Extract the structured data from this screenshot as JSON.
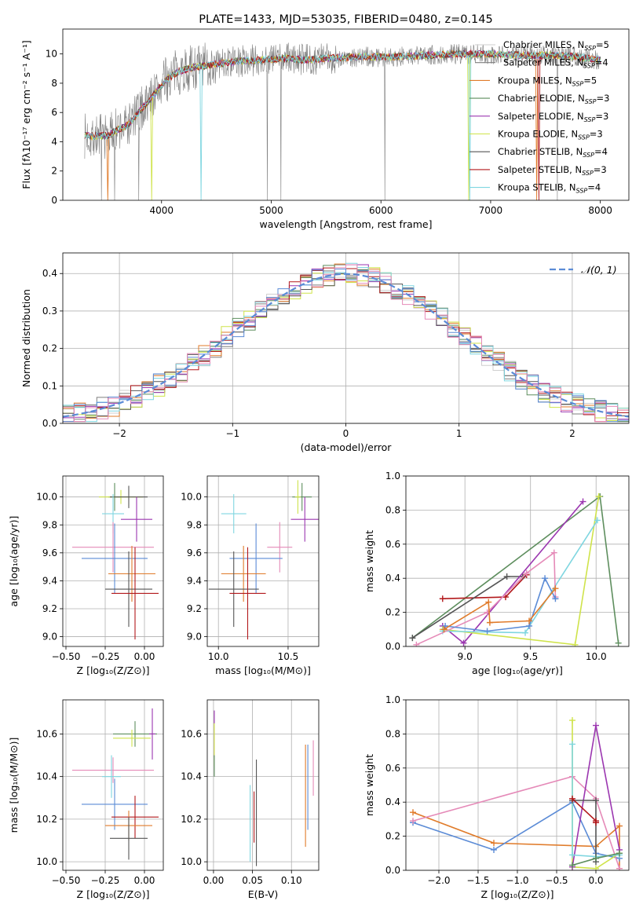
{
  "colors": {
    "chabrier_miles": "#cfcfcf",
    "salpeter_miles": "#7f7f7f",
    "kroupa_miles": "#e07b2a",
    "chabrier_elodie": "#5e8e5e",
    "salpeter_elodie": "#9b36b0",
    "kroupa_elodie": "#cfe34a",
    "chabrier_stelib": "#555555",
    "salpeter_stelib": "#b2181b",
    "kroupa_stelib": "#7fd6e0",
    "blue": "#5b8bd6",
    "pink": "#e58ab8"
  },
  "chart_data": [
    {
      "id": "spectrum",
      "type": "line",
      "title": "PLATE=1433, MJD=53035, FIBERID=0480, z=0.145",
      "xlabel": "wavelength [Angstrom, rest frame]",
      "ylabel": "Flux [fλ10⁻¹⁷ erg cm⁻² s⁻¹ A⁻¹]",
      "xlim": [
        3100,
        8260
      ],
      "ylim": [
        0,
        11.7
      ],
      "xticks": [
        "4000",
        "5000",
        "6000",
        "7000",
        "8000"
      ],
      "xtick_values": [
        4000,
        5000,
        6000,
        7000,
        8000
      ],
      "yticks": [
        "0",
        "2",
        "4",
        "6",
        "8",
        "10"
      ],
      "ytick_values": [
        0,
        2,
        4,
        6,
        8,
        10
      ],
      "continuum": {
        "x": [
          3300,
          3500,
          3700,
          3850,
          3950,
          4050,
          4150,
          4300,
          4500,
          4700,
          4900,
          5100,
          5300,
          5500,
          5800,
          6100,
          6400,
          6700,
          7000,
          7300,
          7600,
          7800,
          8000
        ],
        "y": [
          4.4,
          4.4,
          5.2,
          6.5,
          7.4,
          8.3,
          8.8,
          9.1,
          9.3,
          9.5,
          9.6,
          9.7,
          9.6,
          9.7,
          9.8,
          9.8,
          9.9,
          10.0,
          10.0,
          9.9,
          9.9,
          9.8,
          9.6
        ]
      },
      "legend": [
        {
          "label": "Chabrier MILES, N",
          "sub": "SSP",
          "eq": "=5"
        },
        {
          "label": "Salpeter MILES, N",
          "sub": "SSP",
          "eq": "=4"
        },
        {
          "label": "Kroupa MILES, N",
          "sub": "SSP",
          "eq": "=5"
        },
        {
          "label": "Chabrier ELODIE, N",
          "sub": "SSP",
          "eq": "=3"
        },
        {
          "label": "Salpeter ELODIE, N",
          "sub": "SSP",
          "eq": "=3"
        },
        {
          "label": "Kroupa ELODIE, N",
          "sub": "SSP",
          "eq": "=3"
        },
        {
          "label": "Chabrier STELIB, N",
          "sub": "SSP",
          "eq": "=4"
        },
        {
          "label": "Salpeter STELIB, N",
          "sub": "SSP",
          "eq": "=3"
        },
        {
          "label": "Kroupa STELIB, N",
          "sub": "SSP",
          "eq": "=4"
        }
      ],
      "legend_placement": "right"
    },
    {
      "id": "residual_histogram",
      "type": "histogram",
      "xlabel": "(data-model)/error",
      "ylabel": "Normed distribution",
      "xlim": [
        -2.5,
        2.5
      ],
      "ylim": [
        0,
        0.455
      ],
      "xticks": [
        "−2",
        "−1",
        "0",
        "1",
        "2"
      ],
      "xtick_values": [
        -2,
        -1,
        0,
        1,
        2
      ],
      "yticks": [
        "0.0",
        "0.1",
        "0.2",
        "0.3",
        "0.4"
      ],
      "ytick_values": [
        0,
        0.1,
        0.2,
        0.3,
        0.4
      ],
      "bin_width": 0.1,
      "legend": "𝒩(0, 1)",
      "legend_placement": "top-right",
      "grid": true
    },
    {
      "id": "age_vs_z",
      "type": "errorbar",
      "xlabel": "Z [log₁₀(Z/Z⊙)]",
      "ylabel": "age  [log₁₀(age/yr)]",
      "xlim": [
        -0.52,
        0.12
      ],
      "ylim": [
        8.93,
        10.15
      ],
      "xticks": [
        "−0.50",
        "−0.25",
        "0.00"
      ],
      "xtick_values": [
        -0.5,
        -0.25,
        0.0
      ],
      "yticks": [
        "9.0",
        "9.2",
        "9.4",
        "9.6",
        "9.8",
        "10.0"
      ],
      "ytick_values": [
        9.0,
        9.2,
        9.4,
        9.6,
        9.8,
        10.0
      ],
      "points": [
        {
          "x": -0.19,
          "y": 10.0,
          "xerr": 0.04,
          "yerr": 0.1,
          "c": "chabrier_elodie"
        },
        {
          "x": -0.15,
          "y": 10.0,
          "xerr": 0.14,
          "yerr": 0.05,
          "c": "kroupa_elodie"
        },
        {
          "x": -0.1,
          "y": 10.0,
          "xerr": 0.12,
          "yerr": 0.08,
          "c": "chabrier_stelib"
        },
        {
          "x": -0.2,
          "y": 9.88,
          "xerr": 0.07,
          "yerr": 0.14,
          "c": "kroupa_stelib"
        },
        {
          "x": -0.05,
          "y": 9.84,
          "xerr": 0.1,
          "yerr": 0.16,
          "c": "salpeter_elodie"
        },
        {
          "x": -0.2,
          "y": 9.64,
          "xerr": 0.26,
          "yerr": 0.18,
          "c": "pink"
        },
        {
          "x": -0.19,
          "y": 9.56,
          "xerr": 0.21,
          "yerr": 0.25,
          "c": "blue"
        },
        {
          "x": -0.08,
          "y": 9.45,
          "xerr": 0.15,
          "yerr": 0.2,
          "c": "kroupa_miles"
        },
        {
          "x": -0.1,
          "y": 9.34,
          "xerr": 0.15,
          "yerr": 0.27,
          "c": "chabrier_stelib"
        },
        {
          "x": -0.06,
          "y": 9.31,
          "xerr": 0.15,
          "yerr": 0.33,
          "c": "salpeter_stelib"
        }
      ],
      "grid": true
    },
    {
      "id": "age_vs_mass",
      "type": "errorbar",
      "xlabel": "mass [log₁₀(M/M⊙)]",
      "ylabel": "",
      "xlim": [
        9.92,
        10.72
      ],
      "ylim": [
        8.93,
        10.15
      ],
      "xticks": [
        "10.0",
        "10.5"
      ],
      "xtick_values": [
        10.0,
        10.5
      ],
      "yticks": [
        "9.0",
        "9.2",
        "9.4",
        "9.6",
        "9.8",
        "10.0"
      ],
      "ytick_values": [
        9.0,
        9.2,
        9.4,
        9.6,
        9.8,
        10.0
      ],
      "points": [
        {
          "x": 10.6,
          "y": 10.0,
          "xerr": 0.07,
          "yerr": 0.1,
          "c": "chabrier_elodie"
        },
        {
          "x": 10.57,
          "y": 10.0,
          "xerr": 0.02,
          "yerr": 0.12,
          "c": "kroupa_elodie"
        },
        {
          "x": 10.11,
          "y": 9.88,
          "xerr": 0.09,
          "yerr": 0.14,
          "c": "kroupa_stelib"
        },
        {
          "x": 10.62,
          "y": 9.84,
          "xerr": 0.1,
          "yerr": 0.16,
          "c": "salpeter_elodie"
        },
        {
          "x": 10.44,
          "y": 9.64,
          "xerr": 0.09,
          "yerr": 0.18,
          "c": "pink"
        },
        {
          "x": 10.27,
          "y": 9.56,
          "xerr": 0.19,
          "yerr": 0.25,
          "c": "blue"
        },
        {
          "x": 10.18,
          "y": 9.45,
          "xerr": 0.16,
          "yerr": 0.2,
          "c": "kroupa_miles"
        },
        {
          "x": 10.11,
          "y": 9.34,
          "xerr": 0.18,
          "yerr": 0.27,
          "c": "chabrier_stelib"
        },
        {
          "x": 10.21,
          "y": 9.31,
          "xerr": 0.13,
          "yerr": 0.33,
          "c": "salpeter_stelib"
        }
      ],
      "grid": true
    },
    {
      "id": "weight_vs_age",
      "type": "line",
      "xlabel": "age  [log₁₀(age/yr)]",
      "ylabel": "mass weight",
      "xlim": [
        8.55,
        10.25
      ],
      "ylim": [
        0.0,
        1.0
      ],
      "xticks": [
        "9.0",
        "9.5",
        "10.0"
      ],
      "xtick_values": [
        9.0,
        9.5,
        10.0
      ],
      "yticks": [
        "0.0",
        "0.2",
        "0.4",
        "0.6",
        "0.8",
        "1.0"
      ],
      "ytick_values": [
        0,
        0.2,
        0.4,
        0.6,
        0.8,
        1.0
      ],
      "series": [
        {
          "c": "chabrier_elodie",
          "x": [
            8.6,
            10.03,
            10.17
          ],
          "y": [
            0.05,
            0.88,
            0.02
          ]
        },
        {
          "c": "salpeter_stelib",
          "x": [
            8.83,
            9.31,
            9.47
          ],
          "y": [
            0.28,
            0.29,
            0.42
          ]
        },
        {
          "c": "chabrier_stelib",
          "x": [
            8.6,
            9.32,
            9.44
          ],
          "y": [
            0.05,
            0.41,
            0.41
          ]
        },
        {
          "c": "salpeter_elodie",
          "x": [
            8.83,
            8.99,
            9.9
          ],
          "y": [
            0.12,
            0.02,
            0.85
          ]
        },
        {
          "c": "kroupa_elodie",
          "x": [
            8.83,
            9.84,
            10.02
          ],
          "y": [
            0.1,
            0.01,
            0.88
          ]
        },
        {
          "c": "kroupa_stelib",
          "x": [
            8.83,
            9.46,
            10.01
          ],
          "y": [
            0.09,
            0.08,
            0.74
          ]
        },
        {
          "c": "pink",
          "x": [
            8.63,
            9.17,
            9.47,
            9.68,
            9.69
          ],
          "y": [
            0.01,
            0.2,
            0.43,
            0.55,
            0.29
          ]
        },
        {
          "c": "blue",
          "x": [
            8.85,
            9.17,
            9.49,
            9.61,
            9.69
          ],
          "y": [
            0.12,
            0.09,
            0.12,
            0.4,
            0.28
          ]
        },
        {
          "c": "kroupa_miles",
          "x": [
            8.84,
            9.18,
            9.19,
            9.49,
            9.69
          ],
          "y": [
            0.1,
            0.26,
            0.14,
            0.15,
            0.34
          ]
        }
      ],
      "grid": true
    },
    {
      "id": "mass_vs_z",
      "type": "errorbar",
      "xlabel": "Z [log₁₀(Z/Z⊙)]",
      "ylabel": "mass [log₁₀(M/M⊙)]",
      "xlim": [
        -0.52,
        0.12
      ],
      "ylim": [
        9.96,
        10.76
      ],
      "xticks": [
        "−0.50",
        "−0.25",
        "0.00"
      ],
      "xtick_values": [
        -0.5,
        -0.25,
        0.0
      ],
      "yticks": [
        "10.0",
        "10.2",
        "10.4",
        "10.6"
      ],
      "ytick_values": [
        10.0,
        10.2,
        10.4,
        10.6
      ],
      "points": [
        {
          "x": -0.06,
          "y": 10.6,
          "xerr": 0.14,
          "yerr": 0.06,
          "c": "chabrier_elodie"
        },
        {
          "x": 0.05,
          "y": 10.6,
          "xerr": 0.02,
          "yerr": 0.12,
          "c": "salpeter_elodie"
        },
        {
          "x": -0.08,
          "y": 10.58,
          "xerr": 0.12,
          "yerr": 0.04,
          "c": "kroupa_elodie"
        },
        {
          "x": -0.2,
          "y": 10.43,
          "xerr": 0.26,
          "yerr": 0.06,
          "c": "pink"
        },
        {
          "x": -0.21,
          "y": 10.4,
          "xerr": 0.06,
          "yerr": 0.1,
          "c": "kroupa_stelib"
        },
        {
          "x": -0.19,
          "y": 10.27,
          "xerr": 0.21,
          "yerr": 0.12,
          "c": "blue"
        },
        {
          "x": -0.06,
          "y": 10.21,
          "xerr": 0.15,
          "yerr": 0.1,
          "c": "salpeter_stelib"
        },
        {
          "x": -0.1,
          "y": 10.17,
          "xerr": 0.15,
          "yerr": 0.07,
          "c": "kroupa_miles"
        },
        {
          "x": -0.1,
          "y": 10.11,
          "xerr": 0.12,
          "yerr": 0.1,
          "c": "chabrier_stelib"
        }
      ],
      "grid": true
    },
    {
      "id": "mass_vs_ebv",
      "type": "errorbar",
      "xlabel": "E(B-V)",
      "ylabel": "",
      "xlim": [
        -0.008,
        0.135
      ],
      "ylim": [
        9.96,
        10.76
      ],
      "xticks": [
        "0.00",
        "0.05",
        "0.10"
      ],
      "xtick_values": [
        0.0,
        0.05,
        0.1
      ],
      "yticks": [
        "10.0",
        "10.2",
        "10.4",
        "10.6"
      ],
      "ytick_values": [
        10.0,
        10.2,
        10.4,
        10.6
      ],
      "points": [
        {
          "x": 0.001,
          "y": 10.6,
          "xerr": 0,
          "yerr": 0.11,
          "c": "salpeter_elodie"
        },
        {
          "x": 0.001,
          "y": 10.55,
          "xerr": 0,
          "yerr": 0.1,
          "c": "kroupa_elodie"
        },
        {
          "x": 0.001,
          "y": 10.45,
          "xerr": 0,
          "yerr": 0.05,
          "c": "chabrier_elodie"
        },
        {
          "x": 0.047,
          "y": 10.18,
          "xerr": 0,
          "yerr": 0.18,
          "c": "kroupa_stelib"
        },
        {
          "x": 0.052,
          "y": 10.21,
          "xerr": 0,
          "yerr": 0.12,
          "c": "salpeter_stelib"
        },
        {
          "x": 0.055,
          "y": 10.23,
          "xerr": 0,
          "yerr": 0.25,
          "c": "chabrier_stelib"
        },
        {
          "x": 0.118,
          "y": 10.31,
          "xerr": 0,
          "yerr": 0.24,
          "c": "kroupa_miles"
        },
        {
          "x": 0.121,
          "y": 10.35,
          "xerr": 0,
          "yerr": 0.2,
          "c": "blue"
        },
        {
          "x": 0.128,
          "y": 10.44,
          "xerr": 0,
          "yerr": 0.13,
          "c": "pink"
        }
      ],
      "grid": true
    },
    {
      "id": "weight_vs_z",
      "type": "line",
      "xlabel": "Z [log₁₀(Z/Z⊙)]",
      "ylabel": "mass weight",
      "xlim": [
        -2.42,
        0.42
      ],
      "ylim": [
        0.0,
        1.0
      ],
      "xticks": [
        "−2.0",
        "−1.5",
        "−1.0",
        "−0.5",
        "0.0"
      ],
      "xtick_values": [
        -2.0,
        -1.5,
        -1.0,
        -0.5,
        0.0
      ],
      "yticks": [
        "0.0",
        "0.2",
        "0.4",
        "0.6",
        "0.8",
        "1.0"
      ],
      "ytick_values": [
        0,
        0.2,
        0.4,
        0.6,
        0.8,
        1.0
      ],
      "series": [
        {
          "c": "kroupa_miles",
          "x": [
            -2.33,
            -1.3,
            0.0,
            0.3,
            0.3
          ],
          "y": [
            0.34,
            0.16,
            0.14,
            0.26,
            0.01
          ]
        },
        {
          "c": "blue",
          "x": [
            -2.33,
            -1.3,
            -0.3,
            0.0,
            0.3
          ],
          "y": [
            0.28,
            0.12,
            0.4,
            0.1,
            0.07
          ]
        },
        {
          "c": "pink",
          "x": [
            -2.33,
            -0.3,
            0.0,
            0.3
          ],
          "y": [
            0.29,
            0.55,
            0.42,
            0.01
          ]
        },
        {
          "c": "kroupa_elodie",
          "x": [
            -0.3,
            -0.3,
            0.0,
            0.3
          ],
          "y": [
            0.88,
            0.02,
            0.01,
            0.1
          ]
        },
        {
          "c": "salpeter_elodie",
          "x": [
            -0.3,
            0.0,
            0.3
          ],
          "y": [
            0.02,
            0.85,
            0.12
          ]
        },
        {
          "c": "kroupa_stelib",
          "x": [
            -0.3,
            -0.3,
            0.0,
            0.3
          ],
          "y": [
            0.74,
            0.09,
            0.08,
            0.09
          ]
        },
        {
          "c": "chabrier_stelib",
          "x": [
            -0.3,
            0.0,
            0.0
          ],
          "y": [
            0.41,
            0.41,
            0.05
          ]
        },
        {
          "c": "salpeter_stelib",
          "x": [
            -0.3,
            0.0,
            0.0
          ],
          "y": [
            0.42,
            0.29,
            0.28
          ]
        },
        {
          "c": "chabrier_elodie",
          "x": [
            -0.3,
            0.0,
            0.3
          ],
          "y": [
            0.03,
            0.07,
            0.1
          ]
        }
      ],
      "grid": true
    }
  ]
}
